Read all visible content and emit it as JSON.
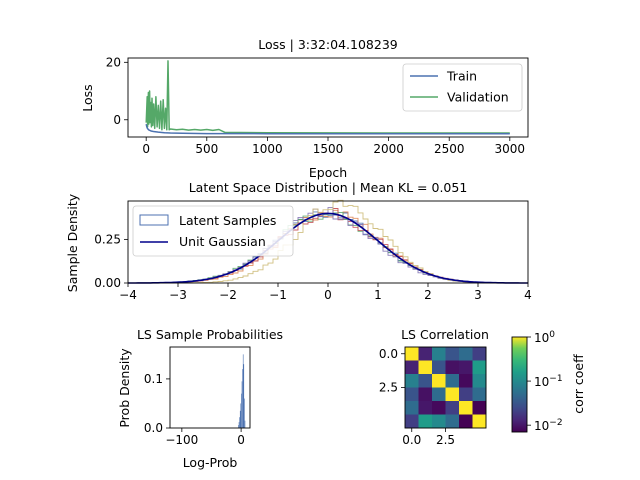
{
  "chart_data": [
    {
      "type": "line",
      "title": "Loss | 3:32:04.108239",
      "xlabel": "Epoch",
      "ylabel": "Loss",
      "xlim": [
        -150,
        3150
      ],
      "ylim": [
        -6,
        21.5
      ],
      "xticks": [
        "0",
        "500",
        "1000",
        "1500",
        "2000",
        "2500",
        "3000"
      ],
      "yticks": [
        "0",
        "20"
      ],
      "legend": "upper-right",
      "series": [
        {
          "name": "Train",
          "color": "#4c72b0",
          "x": [
            0,
            5,
            10,
            20,
            40,
            60,
            100,
            150,
            200,
            300,
            500,
            1000,
            2000,
            3000
          ],
          "y": [
            -1.5,
            -2.5,
            -3.0,
            -3.5,
            -3.9,
            -4.1,
            -4.3,
            -4.5,
            -4.6,
            -4.7,
            -4.8,
            -4.85,
            -4.9,
            -4.9
          ]
        },
        {
          "name": "Validation",
          "color": "#55a868",
          "x": [
            0,
            8,
            12,
            18,
            22,
            28,
            33,
            38,
            43,
            48,
            55,
            62,
            70,
            80,
            90,
            100,
            110,
            120,
            130,
            140,
            150,
            160,
            170,
            180,
            190,
            200,
            250,
            300,
            350,
            400,
            450,
            500,
            550,
            600,
            650,
            1000,
            2000,
            3000
          ],
          "y": [
            -1.0,
            8.0,
            -2.5,
            9.5,
            -1.5,
            10.0,
            -1.0,
            6.0,
            -2.5,
            7.5,
            -2.0,
            5.5,
            -3.0,
            8.0,
            -2.5,
            5.0,
            -3.0,
            6.5,
            -3.5,
            7.0,
            -3.0,
            4.0,
            -3.5,
            20.5,
            -3.5,
            -3.2,
            -3.5,
            -3.3,
            -3.6,
            -3.4,
            -3.6,
            -3.4,
            -3.7,
            -3.4,
            -4.4,
            -4.5,
            -4.6,
            -4.6
          ]
        }
      ]
    },
    {
      "type": "area",
      "title": "Latent Space Distribution | Mean KL = 0.051",
      "xlabel": "",
      "ylabel": "Sample Density",
      "xlim": [
        -4,
        4
      ],
      "ylim": [
        0,
        0.47
      ],
      "xticks": [
        "−4",
        "−3",
        "−2",
        "−1",
        "0",
        "1",
        "2",
        "3",
        "4"
      ],
      "yticks": [
        "0.00",
        "0.25"
      ],
      "legend": "upper-left",
      "series": [
        {
          "name": "Latent Samples",
          "color": "#4c72b0",
          "style": "step-histogram",
          "mean": 0.0,
          "std": 1.0
        },
        {
          "name": "",
          "color": "#dd8452",
          "style": "step-histogram",
          "mean": 0.05,
          "std": 0.97
        },
        {
          "name": "",
          "color": "#55a868",
          "style": "step-histogram",
          "mean": -0.03,
          "std": 1.02
        },
        {
          "name": "",
          "color": "#c44e52",
          "style": "step-histogram",
          "mean": 0.02,
          "std": 1.0
        },
        {
          "name": "",
          "color": "#8172b3",
          "style": "step-histogram",
          "mean": -0.05,
          "std": 0.98
        },
        {
          "name": "",
          "color": "#ccb974",
          "style": "step-histogram",
          "mean": 0.25,
          "std": 0.85
        },
        {
          "name": "Unit Gaussian",
          "color": "#00008b",
          "style": "line",
          "mean": 0.0,
          "std": 1.0
        }
      ]
    },
    {
      "type": "bar",
      "title": "LS Sample Probabilities",
      "xlabel": "Log-Prob",
      "ylabel": "Prob Density",
      "xlim": [
        -120,
        15
      ],
      "ylim": [
        0,
        0.165
      ],
      "xticks": [
        "−100",
        "0"
      ],
      "yticks": [
        "0.0",
        "0.1"
      ],
      "color": "#4c72b0",
      "bins": [
        {
          "x0": -5,
          "x1": -4,
          "v": 0.006
        },
        {
          "x0": -4,
          "x1": -3,
          "v": 0.012
        },
        {
          "x0": -3,
          "x1": -2,
          "v": 0.022
        },
        {
          "x0": -2,
          "x1": -1,
          "v": 0.035
        },
        {
          "x0": -1,
          "x1": 0,
          "v": 0.05
        },
        {
          "x0": 0,
          "x1": 1,
          "v": 0.07
        },
        {
          "x0": 1,
          "x1": 2,
          "v": 0.095
        },
        {
          "x0": 2,
          "x1": 3,
          "v": 0.12
        },
        {
          "x0": 3,
          "x1": 4,
          "v": 0.15
        },
        {
          "x0": 4,
          "x1": 5,
          "v": 0.13
        },
        {
          "x0": 5,
          "x1": 6,
          "v": 0.06
        },
        {
          "x0": 6,
          "x1": 7,
          "v": 0.015
        }
      ]
    },
    {
      "type": "heatmap",
      "title": "LS Correlation",
      "xticks": [
        "0.0",
        "2.5"
      ],
      "yticks": [
        "0.0",
        "2.5"
      ],
      "colorbar_label": "corr coeff",
      "colorbar_ticks": [
        "10",
        "10",
        "10"
      ],
      "colorbar_exponents": [
        "0",
        "−1",
        "−2"
      ],
      "scale": "log",
      "vlim": [
        0.007,
        1
      ],
      "matrix": [
        [
          1.0,
          0.012,
          0.08,
          0.03,
          0.05,
          0.02
        ],
        [
          0.012,
          1.0,
          0.03,
          0.009,
          0.01,
          0.15
        ],
        [
          0.08,
          0.03,
          1.0,
          0.05,
          0.008,
          0.1
        ],
        [
          0.03,
          0.009,
          0.05,
          1.0,
          0.02,
          0.05
        ],
        [
          0.05,
          0.01,
          0.008,
          0.02,
          1.0,
          0.007
        ],
        [
          0.02,
          0.15,
          0.1,
          0.05,
          0.007,
          1.0
        ]
      ]
    }
  ]
}
